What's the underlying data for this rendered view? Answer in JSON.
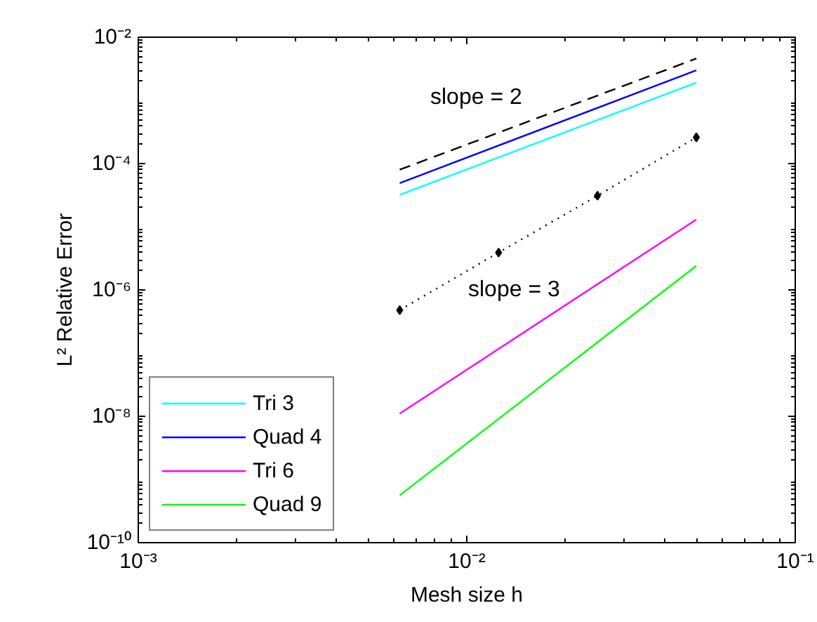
{
  "chart_data": {
    "type": "line",
    "xlabel": "Mesh size h",
    "ylabel": "L² Relative Error",
    "log": "xy",
    "grid": false,
    "legend": "bottom left",
    "marker": "none",
    "line_style": "solid",
    "xlim": [
      0.001,
      0.1
    ],
    "ylim": [
      1e-10,
      0.01
    ],
    "xticks": [
      {
        "value": 0.001,
        "label": "10⁻³"
      },
      {
        "value": 0.01,
        "label": "10⁻²"
      },
      {
        "value": 0.1,
        "label": "10⁻¹"
      }
    ],
    "yticks": [
      {
        "value": 1e-10,
        "label": "10⁻¹⁰"
      },
      {
        "value": 1e-08,
        "label": "10⁻⁸"
      },
      {
        "value": 1e-06,
        "label": "10⁻⁶"
      },
      {
        "value": 0.0001,
        "label": "10⁻⁴"
      },
      {
        "value": 0.01,
        "label": "10⁻²"
      }
    ],
    "x": [
      0.00625,
      0.05
    ],
    "series": [
      {
        "name": "Tri 3",
        "color": "#00ffff",
        "values": [
          3.2e-05,
          0.0019
        ]
      },
      {
        "name": "Quad 4",
        "color": "#0000ff",
        "values": [
          4.9e-05,
          0.003
        ]
      },
      {
        "name": "Tri 6",
        "color": "#ff00ff",
        "values": [
          1.1e-08,
          1.3e-05
        ]
      },
      {
        "name": "Quad 9",
        "color": "#00ff00",
        "values": [
          5.6e-10,
          2.4e-06
        ]
      },
      {
        "color": "#000000",
        "line_style": "dashed",
        "values": [
          8e-05,
          0.0046
        ]
      },
      {
        "color": "#000000",
        "line_style": "dotted",
        "marker": "diamond",
        "x": [
          0.00625,
          0.0125,
          0.025,
          0.05
        ],
        "values": [
          4.8e-07,
          3.9e-06,
          3.1e-05,
          0.00026
        ]
      }
    ],
    "annotations": [
      "slope = 2",
      "slope = 3"
    ]
  }
}
